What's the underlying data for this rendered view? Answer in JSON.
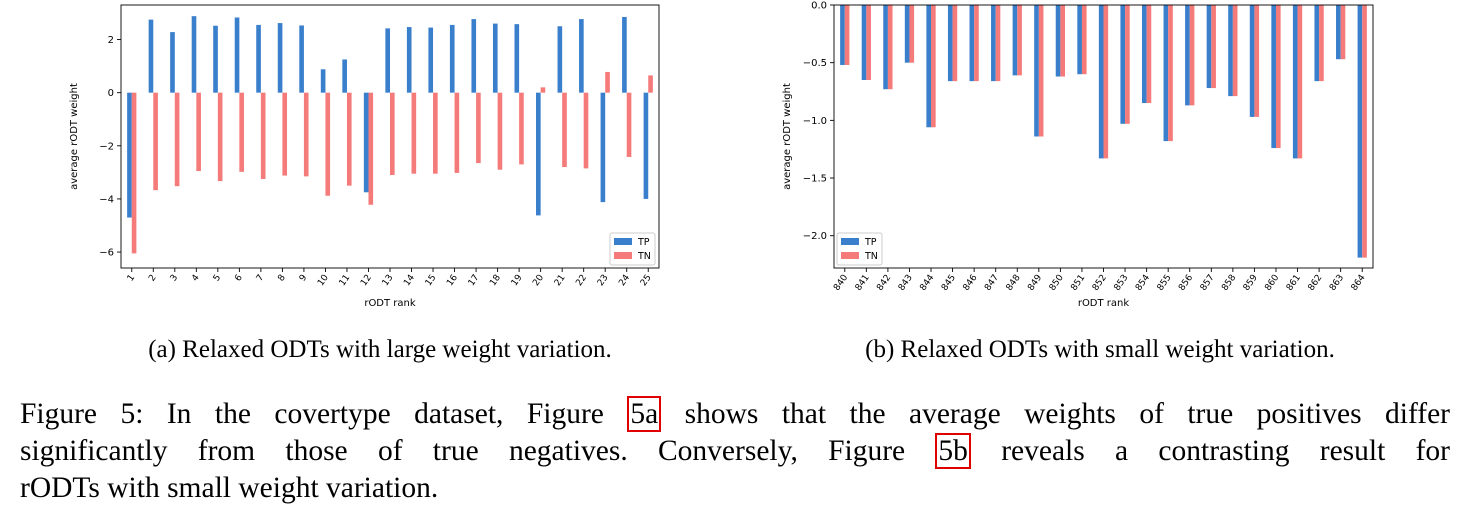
{
  "colors": {
    "tp": "#3a7fcc",
    "tn": "#f57b7b"
  },
  "charts": [
    {
      "name": "chart-a",
      "type": "bar",
      "ylabel": "average rODT weight",
      "xlabel": "rODT rank",
      "yticks": [
        2,
        0,
        -2,
        -4,
        -6
      ],
      "ytick_labels": [
        "2",
        "0",
        "−2",
        "−4",
        "−6"
      ],
      "ylim": [
        -6.6,
        3.3
      ],
      "legend": [
        "TP",
        "TN"
      ],
      "categories": [
        "1",
        "2",
        "3",
        "4",
        "5",
        "6",
        "7",
        "8",
        "9",
        "10",
        "11",
        "12",
        "13",
        "14",
        "15",
        "16",
        "17",
        "18",
        "19",
        "20",
        "21",
        "22",
        "23",
        "24",
        "25"
      ],
      "series": [
        {
          "name": "TP",
          "values": [
            -4.7,
            2.75,
            2.28,
            2.88,
            2.52,
            2.83,
            2.55,
            2.62,
            2.53,
            0.88,
            1.25,
            -3.75,
            2.42,
            2.47,
            2.45,
            2.55,
            2.77,
            2.6,
            2.58,
            -4.62,
            2.5,
            2.77,
            -4.12,
            2.85,
            -4.0
          ]
        },
        {
          "name": "TN",
          "values": [
            -6.05,
            -3.67,
            -3.52,
            -2.95,
            -3.33,
            -2.98,
            -3.25,
            -3.12,
            -3.15,
            -3.88,
            -3.5,
            -4.22,
            -3.1,
            -3.05,
            -3.05,
            -3.02,
            -2.65,
            -2.9,
            -2.7,
            0.2,
            -2.8,
            -2.85,
            0.78,
            -2.42,
            0.65
          ]
        }
      ]
    },
    {
      "name": "chart-b",
      "type": "bar",
      "ylabel": "average rODT weight",
      "xlabel": "rODT rank",
      "yticks": [
        0.0,
        -0.5,
        -1.0,
        -1.5,
        -2.0
      ],
      "ytick_labels": [
        "0.0",
        "−0.5",
        "−1.0",
        "−1.5",
        "−2.0"
      ],
      "ylim": [
        -2.28,
        0.0
      ],
      "legend": [
        "TP",
        "TN"
      ],
      "categories": [
        "840",
        "841",
        "842",
        "843",
        "844",
        "845",
        "846",
        "847",
        "848",
        "849",
        "850",
        "851",
        "852",
        "853",
        "854",
        "855",
        "856",
        "857",
        "858",
        "859",
        "860",
        "861",
        "862",
        "863",
        "864"
      ],
      "series": [
        {
          "name": "TP",
          "values": [
            -0.52,
            -0.65,
            -0.73,
            -0.5,
            -1.06,
            -0.66,
            -0.66,
            -0.66,
            -0.61,
            -1.14,
            -0.62,
            -0.6,
            -1.33,
            -1.03,
            -0.85,
            -1.18,
            -0.87,
            -0.72,
            -0.79,
            -0.97,
            -1.24,
            -1.33,
            -0.66,
            -0.47,
            -2.19
          ]
        },
        {
          "name": "TN",
          "values": [
            -0.52,
            -0.65,
            -0.73,
            -0.5,
            -1.06,
            -0.66,
            -0.66,
            -0.66,
            -0.61,
            -1.14,
            -0.62,
            -0.6,
            -1.33,
            -1.03,
            -0.85,
            -1.18,
            -0.87,
            -0.72,
            -0.79,
            -0.97,
            -1.24,
            -1.33,
            -0.66,
            -0.47,
            -2.19
          ]
        }
      ]
    }
  ],
  "captions": {
    "a": "(a) Relaxed ODTs with large weight variation.",
    "b": "(b) Relaxed ODTs with small weight variation."
  },
  "figure_caption": {
    "line1_prefix": "Figure 5: In the covertype dataset, Figure ",
    "ref_a": "5a",
    "line1_suffix": " shows that the average weights of true positives differ",
    "line2_prefix": "significantly from those of true negatives.  Conversely, Figure ",
    "ref_b": "5b",
    "line2_suffix": " reveals a contrasting result for",
    "line3": "rODTs with small weight variation."
  }
}
